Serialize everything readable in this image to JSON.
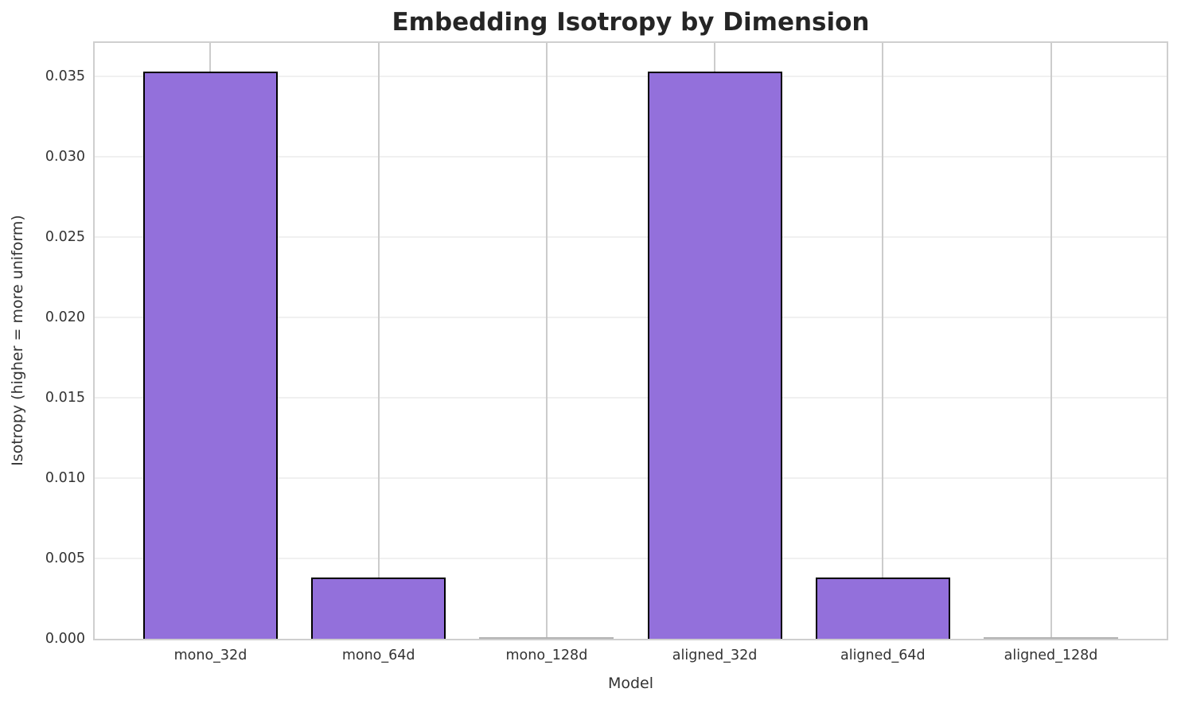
{
  "chart_data": {
    "type": "bar",
    "title": "Embedding Isotropy by Dimension",
    "xlabel": "Model",
    "ylabel": "Isotropy (higher = more uniform)",
    "categories": [
      "mono_32d",
      "mono_64d",
      "mono_128d",
      "aligned_32d",
      "aligned_64d",
      "aligned_128d"
    ],
    "values": [
      0.0353,
      0.0038,
      8e-05,
      0.0353,
      0.0038,
      8e-05
    ],
    "ylim": [
      0,
      0.0371
    ],
    "yticks": [
      0,
      0.005,
      0.01,
      0.015,
      0.02,
      0.025,
      0.03,
      0.035
    ],
    "ytick_labels": [
      "0.000",
      "0.005",
      "0.010",
      "0.015",
      "0.020",
      "0.025",
      "0.030",
      "0.035"
    ],
    "grid": "both",
    "legend": "none",
    "colors": {
      "bar_fill": "#9370DB",
      "bar_edge": "#000000",
      "near_zero_bar": "#b3b3b3",
      "grid_horizontal": "#f0f0f0",
      "grid_vertical": "#cccccc",
      "spine": "#cfcfcf",
      "title_text": "#252525",
      "tick_text": "#333333"
    }
  }
}
